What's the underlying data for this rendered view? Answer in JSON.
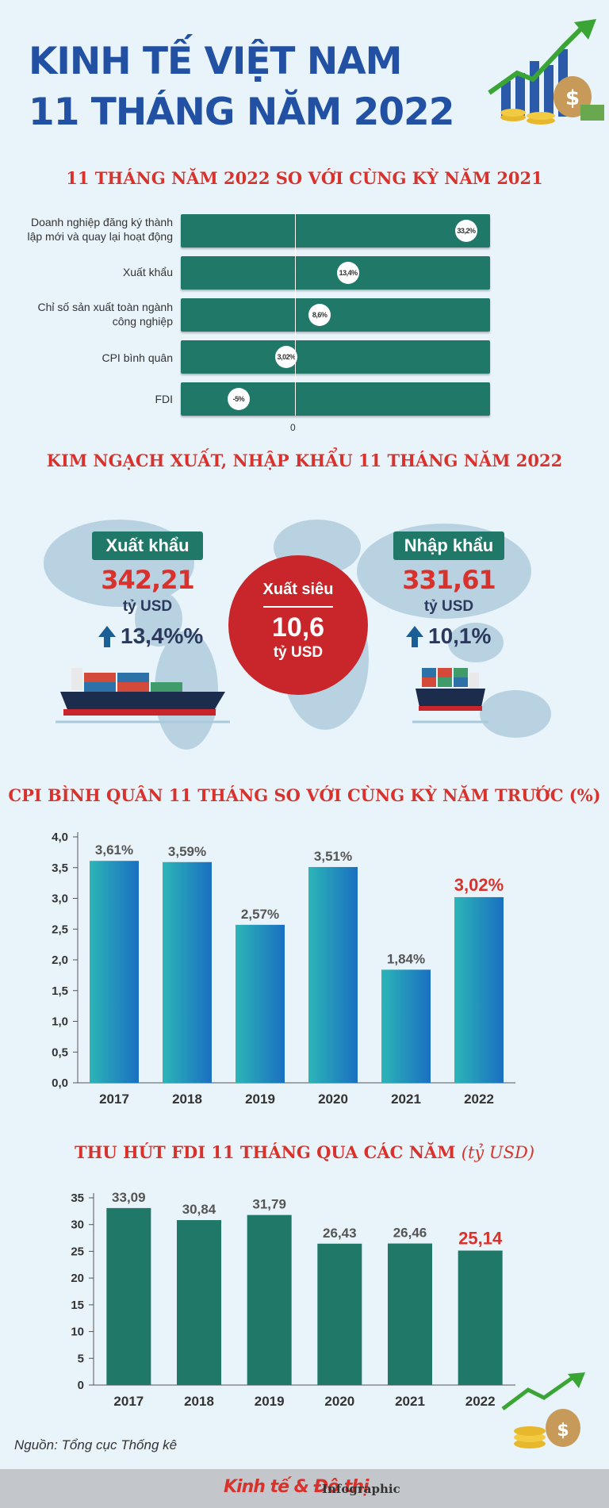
{
  "title": {
    "line1": "KINH TẾ VIỆT NAM",
    "line2": "11 THÁNG NĂM 2022"
  },
  "section1": {
    "title": "11 THÁNG NĂM 2022 SO VỚI CÙNG KỲ NĂM 2021",
    "zero_label": "0",
    "items": [
      {
        "label": "Doanh nghiệp đăng ký thành lập mới và quay lại hoạt động",
        "value_text": "33,2%"
      },
      {
        "label": "Xuất khẩu",
        "value_text": "13,4%"
      },
      {
        "label": "Chỉ số sản xuất toàn ngành công nghiệp",
        "value_text": "8,6%"
      },
      {
        "label": "CPI bình quân",
        "value_text": "3,02%"
      },
      {
        "label": "FDI",
        "value_text": "-5%"
      }
    ]
  },
  "section2": {
    "title": "KIM NGẠCH XUẤT, NHẬP KHẨU 11 THÁNG NĂM 2022",
    "export": {
      "label": "Xuất khẩu",
      "value": "342,21",
      "unit": "tỷ USD",
      "change": "13,4%%"
    },
    "import": {
      "label": "Nhập khẩu",
      "value": "331,61",
      "unit": "tỷ USD",
      "change": "10,1%"
    },
    "surplus": {
      "label": "Xuất siêu",
      "value": "10,6",
      "unit": "tỷ USD"
    }
  },
  "section3": {
    "title": "CPI BÌNH QUÂN 11 THÁNG SO VỚI CÙNG KỲ NĂM TRƯỚC (%)"
  },
  "section4": {
    "title": "THU HÚT FDI 11 THÁNG QUA CÁC NĂM",
    "title_unit": "(tỷ USD)"
  },
  "chart_data": [
    {
      "type": "bar",
      "orientation": "horizontal",
      "title": "11 THÁNG NĂM 2022 SO VỚI CÙNG KỲ NĂM 2021",
      "categories": [
        "Doanh nghiệp đăng ký thành lập mới và quay lại hoạt động",
        "Xuất khẩu",
        "Chỉ số sản xuất toàn ngành công nghiệp",
        "CPI bình quân",
        "FDI"
      ],
      "values": [
        33.2,
        13.4,
        8.6,
        3.02,
        -5
      ],
      "xlim": [
        -14.7,
        37.2
      ]
    },
    {
      "type": "bar",
      "title": "CPI BÌNH QUÂN 11 THÁNG SO VỚI CÙNG KỲ NĂM TRƯỚC (%)",
      "categories": [
        "2017",
        "2018",
        "2019",
        "2020",
        "2021",
        "2022"
      ],
      "values": [
        3.61,
        3.59,
        2.57,
        3.51,
        1.84,
        3.02
      ],
      "labels": [
        "3,61%",
        "3,59%",
        "2,57%",
        "3,51%",
        "1,84%",
        "3,02%"
      ],
      "yticks": [
        "0,0",
        "0,5",
        "1,0",
        "1,5",
        "2,0",
        "2,5",
        "3,0",
        "3,5",
        "4,0"
      ],
      "ylim": [
        0,
        4
      ],
      "highlight_index": 5,
      "bar_color": "#1a8fc0",
      "highlight_color": "#d9322c"
    },
    {
      "type": "bar",
      "title": "THU HÚT FDI 11 THÁNG QUA CÁC NĂM",
      "ylabel": "tỷ USD",
      "categories": [
        "2017",
        "2018",
        "2019",
        "2020",
        "2021",
        "2022"
      ],
      "values": [
        33.09,
        30.84,
        31.79,
        26.43,
        26.46,
        25.14
      ],
      "labels": [
        "33,09",
        "30,84",
        "31,79",
        "26,43",
        "26,46",
        "25,14"
      ],
      "yticks": [
        "0",
        "5",
        "10",
        "15",
        "20",
        "25",
        "30",
        "35"
      ],
      "ylim": [
        0,
        35
      ],
      "highlight_index": 5,
      "bar_color": "#1f7868",
      "highlight_color": "#d9322c"
    }
  ],
  "footer": {
    "source": "Nguồn: Tổng cục Thống kê",
    "brand": "Kinh tế & Đô thị",
    "product": "Infographic"
  }
}
